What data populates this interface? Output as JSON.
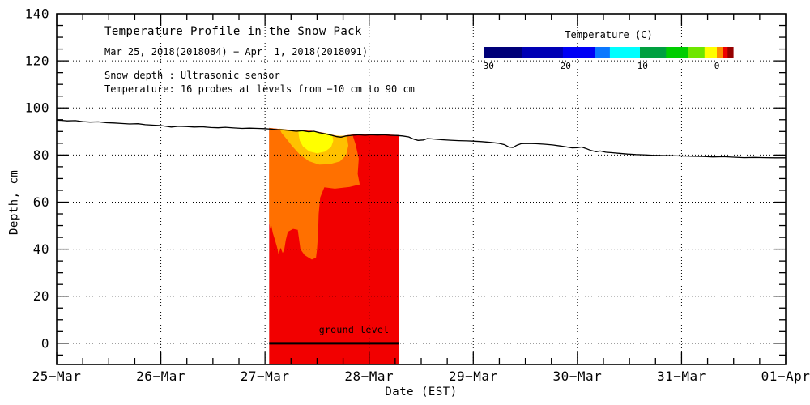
{
  "page": {
    "background": "#FFFFFF",
    "text_color": "#000000"
  },
  "chart_data": {
    "type": "heatmap",
    "title": "Temperature Profile in the Snow Pack",
    "subtitle": "Mar 25, 2018(2018084) − Apr  1, 2018(2018091)",
    "info_lines": [
      "Snow depth : Ultrasonic sensor",
      "Temperature: 16 probes at levels from −10 cm to 90 cm"
    ],
    "xlabel": "Date (EST)",
    "ylabel": "Depth, cm",
    "grid": "dotted",
    "x_tick_labels": [
      "25−Mar",
      "26−Mar",
      "27−Mar",
      "28−Mar",
      "29−Mar",
      "30−Mar",
      "31−Mar",
      "01−Apr"
    ],
    "xlim_days": [
      0,
      7
    ],
    "x_minor_step_days": 0.25,
    "ylim": [
      -9,
      140
    ],
    "y_ticks": [
      0,
      20,
      40,
      60,
      80,
      100,
      120,
      140
    ],
    "y_minor_step": 5,
    "snow_line": {
      "name": "Snow depth (ultrasonic sensor)",
      "color": "#000000",
      "points": [
        [
          0,
          94.8
        ],
        [
          0.05,
          94.7
        ],
        [
          0.1,
          94.5
        ],
        [
          0.18,
          94.6
        ],
        [
          0.25,
          94.2
        ],
        [
          0.32,
          94.0
        ],
        [
          0.4,
          94.1
        ],
        [
          0.48,
          93.7
        ],
        [
          0.55,
          93.6
        ],
        [
          0.62,
          93.4
        ],
        [
          0.7,
          93.2
        ],
        [
          0.78,
          93.3
        ],
        [
          0.85,
          92.9
        ],
        [
          0.93,
          92.7
        ],
        [
          1.0,
          92.5
        ],
        [
          1.05,
          92.2
        ],
        [
          1.1,
          91.9
        ],
        [
          1.17,
          92.2
        ],
        [
          1.25,
          92.1
        ],
        [
          1.32,
          91.9
        ],
        [
          1.4,
          92.0
        ],
        [
          1.48,
          91.7
        ],
        [
          1.55,
          91.6
        ],
        [
          1.62,
          91.8
        ],
        [
          1.7,
          91.5
        ],
        [
          1.78,
          91.3
        ],
        [
          1.85,
          91.4
        ],
        [
          1.93,
          91.3
        ],
        [
          2.0,
          91.2
        ],
        [
          2.06,
          91.0
        ],
        [
          2.12,
          90.8
        ],
        [
          2.18,
          90.7
        ],
        [
          2.24,
          90.4
        ],
        [
          2.3,
          90.1
        ],
        [
          2.36,
          90.3
        ],
        [
          2.42,
          89.9
        ],
        [
          2.47,
          90.1
        ],
        [
          2.52,
          89.5
        ],
        [
          2.58,
          89.0
        ],
        [
          2.64,
          88.4
        ],
        [
          2.69,
          87.8
        ],
        [
          2.73,
          87.6
        ],
        [
          2.78,
          88.1
        ],
        [
          2.84,
          88.4
        ],
        [
          2.9,
          88.6
        ],
        [
          2.96,
          88.4
        ],
        [
          3.02,
          88.6
        ],
        [
          3.08,
          88.5
        ],
        [
          3.14,
          88.6
        ],
        [
          3.2,
          88.4
        ],
        [
          3.26,
          88.3
        ],
        [
          3.32,
          88.1
        ],
        [
          3.38,
          87.7
        ],
        [
          3.43,
          86.7
        ],
        [
          3.47,
          86.2
        ],
        [
          3.52,
          86.4
        ],
        [
          3.56,
          87.0
        ],
        [
          3.62,
          86.8
        ],
        [
          3.7,
          86.5
        ],
        [
          3.78,
          86.3
        ],
        [
          3.86,
          86.1
        ],
        [
          3.94,
          86.0
        ],
        [
          4.0,
          85.9
        ],
        [
          4.08,
          85.7
        ],
        [
          4.16,
          85.4
        ],
        [
          4.24,
          85.0
        ],
        [
          4.3,
          84.4
        ],
        [
          4.34,
          83.4
        ],
        [
          4.38,
          83.2
        ],
        [
          4.42,
          84.2
        ],
        [
          4.46,
          84.8
        ],
        [
          4.52,
          84.9
        ],
        [
          4.6,
          84.8
        ],
        [
          4.68,
          84.6
        ],
        [
          4.76,
          84.3
        ],
        [
          4.84,
          83.8
        ],
        [
          4.9,
          83.4
        ],
        [
          4.95,
          83.0
        ],
        [
          5.0,
          83.1
        ],
        [
          5.04,
          83.4
        ],
        [
          5.08,
          82.8
        ],
        [
          5.13,
          81.9
        ],
        [
          5.18,
          81.4
        ],
        [
          5.22,
          81.7
        ],
        [
          5.27,
          81.2
        ],
        [
          5.33,
          81.0
        ],
        [
          5.4,
          80.7
        ],
        [
          5.48,
          80.4
        ],
        [
          5.56,
          80.2
        ],
        [
          5.64,
          80.1
        ],
        [
          5.72,
          79.9
        ],
        [
          5.8,
          79.8
        ],
        [
          5.9,
          79.7
        ],
        [
          6.0,
          79.6
        ],
        [
          6.1,
          79.5
        ],
        [
          6.2,
          79.4
        ],
        [
          6.3,
          79.2
        ],
        [
          6.4,
          79.3
        ],
        [
          6.5,
          79.1
        ],
        [
          6.6,
          78.9
        ],
        [
          6.7,
          79.0
        ],
        [
          6.8,
          78.9
        ],
        [
          6.9,
          78.8
        ],
        [
          7.0,
          78.8
        ]
      ]
    },
    "temperature_field": {
      "x_start_day": 2.04,
      "x_end_day": 3.29,
      "regions": [
        {
          "name": "red",
          "approx_temp_c": 0,
          "color": "#F20000",
          "polygon": [
            [
              2.04,
              91.5
            ],
            [
              2.15,
              91.0
            ],
            [
              2.25,
              90.7
            ],
            [
              2.35,
              90.5
            ],
            [
              2.45,
              90.3
            ],
            [
              2.52,
              89.8
            ],
            [
              2.58,
              89.3
            ],
            [
              2.64,
              88.7
            ],
            [
              2.69,
              88.1
            ],
            [
              2.73,
              87.9
            ],
            [
              2.78,
              88.4
            ],
            [
              2.84,
              88.7
            ],
            [
              2.9,
              88.9
            ],
            [
              3.0,
              88.8
            ],
            [
              3.1,
              88.9
            ],
            [
              3.2,
              88.7
            ],
            [
              3.29,
              88.5
            ],
            [
              3.29,
              -9
            ],
            [
              2.04,
              -9
            ]
          ]
        },
        {
          "name": "orange",
          "approx_temp_c": -0.5,
          "color": "#FF7000",
          "polygon": [
            [
              2.04,
              91.5
            ],
            [
              2.1,
              91.2
            ],
            [
              2.2,
              90.9
            ],
            [
              2.3,
              90.4
            ],
            [
              2.4,
              90.2
            ],
            [
              2.5,
              89.9
            ],
            [
              2.6,
              89.0
            ],
            [
              2.7,
              88.0
            ],
            [
              2.76,
              88.2
            ],
            [
              2.84,
              88.7
            ],
            [
              2.87,
              84.5
            ],
            [
              2.9,
              78.5
            ],
            [
              2.89,
              72.0
            ],
            [
              2.91,
              67.5
            ],
            [
              2.81,
              66.4
            ],
            [
              2.67,
              65.7
            ],
            [
              2.57,
              66.3
            ],
            [
              2.53,
              62.0
            ],
            [
              2.515,
              55.0
            ],
            [
              2.51,
              47.0
            ],
            [
              2.5,
              40.0
            ],
            [
              2.49,
              36.4
            ],
            [
              2.45,
              35.6
            ],
            [
              2.38,
              37.5
            ],
            [
              2.34,
              40.0
            ],
            [
              2.325,
              45.0
            ],
            [
              2.315,
              48.2
            ],
            [
              2.27,
              48.6
            ],
            [
              2.22,
              47.4
            ],
            [
              2.2,
              44.0
            ],
            [
              2.185,
              39.8
            ],
            [
              2.17,
              38.4
            ],
            [
              2.15,
              40.6
            ],
            [
              2.13,
              37.8
            ],
            [
              2.115,
              41.0
            ],
            [
              2.095,
              44.0
            ],
            [
              2.075,
              46.8
            ],
            [
              2.06,
              50.2
            ],
            [
              2.05,
              48.6
            ],
            [
              2.04,
              51.6
            ]
          ]
        },
        {
          "name": "gold",
          "approx_temp_c": -1,
          "color": "#FFC100",
          "polygon": [
            [
              2.14,
              91.2
            ],
            [
              2.25,
              90.5
            ],
            [
              2.4,
              90.2
            ],
            [
              2.55,
              89.5
            ],
            [
              2.65,
              88.5
            ],
            [
              2.72,
              88.1
            ],
            [
              2.785,
              88.3
            ],
            [
              2.8,
              84.0
            ],
            [
              2.78,
              80.0
            ],
            [
              2.72,
              77.3
            ],
            [
              2.62,
              76.1
            ],
            [
              2.52,
              75.9
            ],
            [
              2.42,
              77.4
            ],
            [
              2.33,
              80.4
            ],
            [
              2.26,
              83.8
            ],
            [
              2.2,
              87.2
            ],
            [
              2.16,
              89.3
            ]
          ]
        },
        {
          "name": "yellow",
          "approx_temp_c": -2,
          "color": "#FFFF00",
          "polygon": [
            [
              2.32,
              90.4
            ],
            [
              2.42,
              90.2
            ],
            [
              2.52,
              89.7
            ],
            [
              2.6,
              89.2
            ],
            [
              2.645,
              88.7
            ],
            [
              2.655,
              86.0
            ],
            [
              2.635,
              83.4
            ],
            [
              2.575,
              81.4
            ],
            [
              2.5,
              80.7
            ],
            [
              2.425,
              81.5
            ],
            [
              2.365,
              83.6
            ],
            [
              2.335,
              86.0
            ],
            [
              2.325,
              88.2
            ]
          ]
        }
      ]
    },
    "ground_line": {
      "x_start_day": 2.04,
      "x_end_day": 3.29,
      "y_cm": 0,
      "color": "#000000"
    },
    "annotations": [
      {
        "text": "ground level",
        "x_day": 2.855,
        "y_cm": 3.5
      }
    ],
    "colorbar": {
      "title": "Temperature (C)",
      "range": [
        -30.2,
        2.1
      ],
      "ticks": [
        -30,
        -20,
        -10,
        0
      ],
      "segments": [
        {
          "from": -30.2,
          "to": -25.3,
          "color": "#000078"
        },
        {
          "from": -25.3,
          "to": -20.0,
          "color": "#0000B4"
        },
        {
          "from": -20.0,
          "to": -15.8,
          "color": "#0000F5"
        },
        {
          "from": -15.8,
          "to": -13.9,
          "color": "#0A78FF"
        },
        {
          "from": -13.9,
          "to": -10.0,
          "color": "#00FFFF"
        },
        {
          "from": -10.0,
          "to": -6.6,
          "color": "#00A040"
        },
        {
          "from": -6.6,
          "to": -3.7,
          "color": "#00CD00"
        },
        {
          "from": -3.7,
          "to": -1.6,
          "color": "#6EE600"
        },
        {
          "from": -1.6,
          "to": 0.0,
          "color": "#FFFF00"
        },
        {
          "from": 0.0,
          "to": 0.8,
          "color": "#FF8C00"
        },
        {
          "from": 0.8,
          "to": 1.4,
          "color": "#F00000"
        },
        {
          "from": 1.4,
          "to": 2.1,
          "color": "#960000"
        }
      ]
    }
  }
}
